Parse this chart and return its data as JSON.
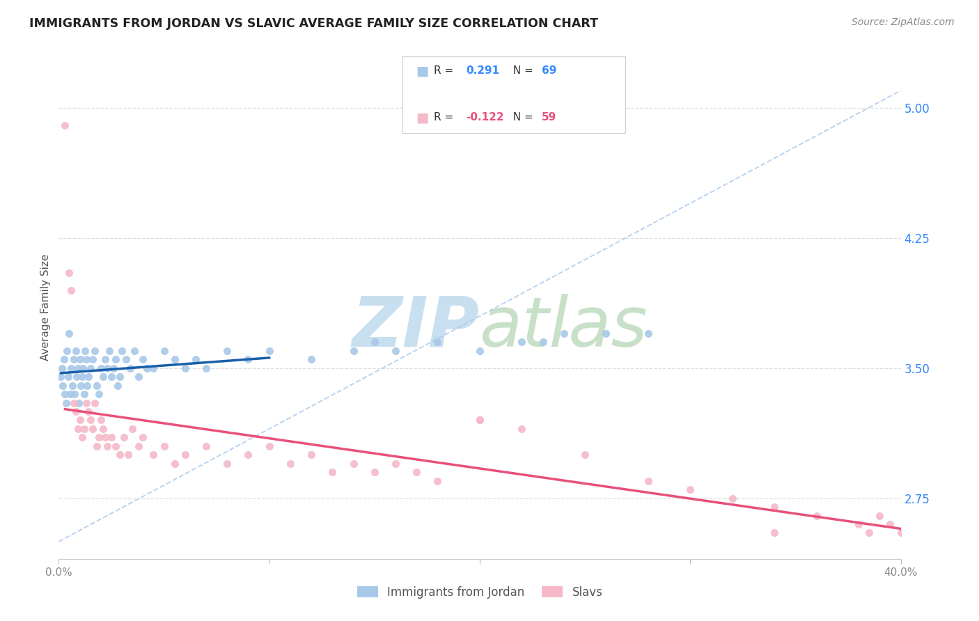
{
  "title": "IMMIGRANTS FROM JORDAN VS SLAVIC AVERAGE FAMILY SIZE CORRELATION CHART",
  "source": "Source: ZipAtlas.com",
  "ylabel": "Average Family Size",
  "right_yticks": [
    2.75,
    3.5,
    4.25,
    5.0
  ],
  "blue_color": "#a8c8e8",
  "pink_color": "#f4b8c8",
  "blue_line_color": "#1a5fa8",
  "pink_line_color": "#e8507a",
  "dashed_line_color": "#aaccee",
  "xlim": [
    0,
    40
  ],
  "ylim": [
    2.4,
    5.3
  ],
  "blue_scatter_x": [
    0.1,
    0.15,
    0.2,
    0.25,
    0.3,
    0.35,
    0.4,
    0.45,
    0.5,
    0.55,
    0.6,
    0.65,
    0.7,
    0.75,
    0.8,
    0.85,
    0.9,
    0.95,
    1.0,
    1.05,
    1.1,
    1.15,
    1.2,
    1.25,
    1.3,
    1.35,
    1.4,
    1.5,
    1.6,
    1.7,
    1.8,
    1.9,
    2.0,
    2.1,
    2.2,
    2.3,
    2.4,
    2.5,
    2.6,
    2.7,
    2.8,
    2.9,
    3.0,
    3.2,
    3.4,
    3.6,
    3.8,
    4.0,
    4.2,
    4.5,
    5.0,
    5.5,
    6.0,
    6.5,
    7.0,
    8.0,
    9.0,
    10.0,
    12.0,
    14.0,
    15.0,
    16.0,
    18.0,
    20.0,
    22.0,
    23.0,
    24.0,
    26.0,
    28.0
  ],
  "blue_scatter_y": [
    3.45,
    3.5,
    3.4,
    3.55,
    3.35,
    3.3,
    3.6,
    3.45,
    3.7,
    3.35,
    3.5,
    3.4,
    3.55,
    3.35,
    3.6,
    3.45,
    3.5,
    3.3,
    3.55,
    3.4,
    3.45,
    3.5,
    3.35,
    3.6,
    3.55,
    3.4,
    3.45,
    3.5,
    3.55,
    3.6,
    3.4,
    3.35,
    3.5,
    3.45,
    3.55,
    3.5,
    3.6,
    3.45,
    3.5,
    3.55,
    3.4,
    3.45,
    3.6,
    3.55,
    3.5,
    3.6,
    3.45,
    3.55,
    3.5,
    3.5,
    3.6,
    3.55,
    3.5,
    3.55,
    3.5,
    3.6,
    3.55,
    3.6,
    3.55,
    3.6,
    3.65,
    3.6,
    3.65,
    3.6,
    3.65,
    3.65,
    3.7,
    3.7,
    3.7
  ],
  "pink_scatter_x": [
    0.3,
    0.5,
    0.6,
    0.7,
    0.8,
    0.9,
    1.0,
    1.1,
    1.2,
    1.3,
    1.4,
    1.5,
    1.6,
    1.7,
    1.8,
    1.9,
    2.0,
    2.1,
    2.2,
    2.3,
    2.5,
    2.7,
    2.9,
    3.1,
    3.3,
    3.5,
    3.8,
    4.0,
    4.5,
    5.0,
    5.5,
    6.0,
    7.0,
    8.0,
    9.0,
    10.0,
    11.0,
    12.0,
    13.0,
    14.0,
    15.0,
    16.0,
    17.0,
    18.0,
    20.0,
    22.0,
    25.0,
    28.0,
    30.0,
    32.0,
    34.0,
    36.0,
    38.0,
    38.5,
    39.0,
    39.5,
    40.0,
    34.0,
    20.0
  ],
  "pink_scatter_y": [
    4.9,
    4.05,
    3.95,
    3.3,
    3.25,
    3.15,
    3.2,
    3.1,
    3.15,
    3.3,
    3.25,
    3.2,
    3.15,
    3.3,
    3.05,
    3.1,
    3.2,
    3.15,
    3.1,
    3.05,
    3.1,
    3.05,
    3.0,
    3.1,
    3.0,
    3.15,
    3.05,
    3.1,
    3.0,
    3.05,
    2.95,
    3.0,
    3.05,
    2.95,
    3.0,
    3.05,
    2.95,
    3.0,
    2.9,
    2.95,
    2.9,
    2.95,
    2.9,
    2.85,
    3.2,
    3.15,
    3.0,
    2.85,
    2.8,
    2.75,
    2.7,
    2.65,
    2.6,
    2.55,
    2.65,
    2.6,
    2.55,
    2.55,
    3.2
  ],
  "blue_line_x0": 0.1,
  "blue_line_x1": 10.0,
  "pink_line_x0": 0.3,
  "pink_line_x1": 40.0,
  "dashed_x0": 0,
  "dashed_y0": 2.5,
  "dashed_x1": 40,
  "dashed_y1": 5.1,
  "watermark_zip_color": "#c8dff0",
  "watermark_atlas_color": "#c8dfc8",
  "grid_color": "#dddddd",
  "title_color": "#222222",
  "source_color": "#888888",
  "ylabel_color": "#555555",
  "tick_color": "#888888",
  "legend_r_blue": "0.291",
  "legend_n_blue": "69",
  "legend_r_pink": "-0.122",
  "legend_n_pink": "59"
}
